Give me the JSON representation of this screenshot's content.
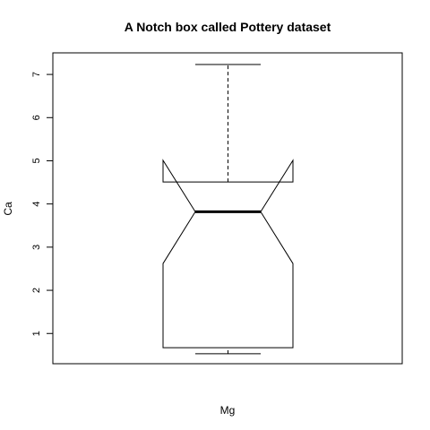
{
  "chart_data": {
    "type": "boxplot",
    "title": "A Notch box called Pottery dataset",
    "xlabel": "Mg",
    "ylabel": "Ca",
    "ylim": [
      0.3,
      7.5
    ],
    "yticks": [
      1,
      2,
      3,
      4,
      5,
      6,
      7
    ],
    "notch": true,
    "box": {
      "min": 0.53,
      "q1": 0.67,
      "median": 3.82,
      "q3": 4.51,
      "max": 7.23,
      "notch_low": 2.62,
      "notch_high": 5.01
    },
    "grid": false,
    "legend": "none"
  }
}
